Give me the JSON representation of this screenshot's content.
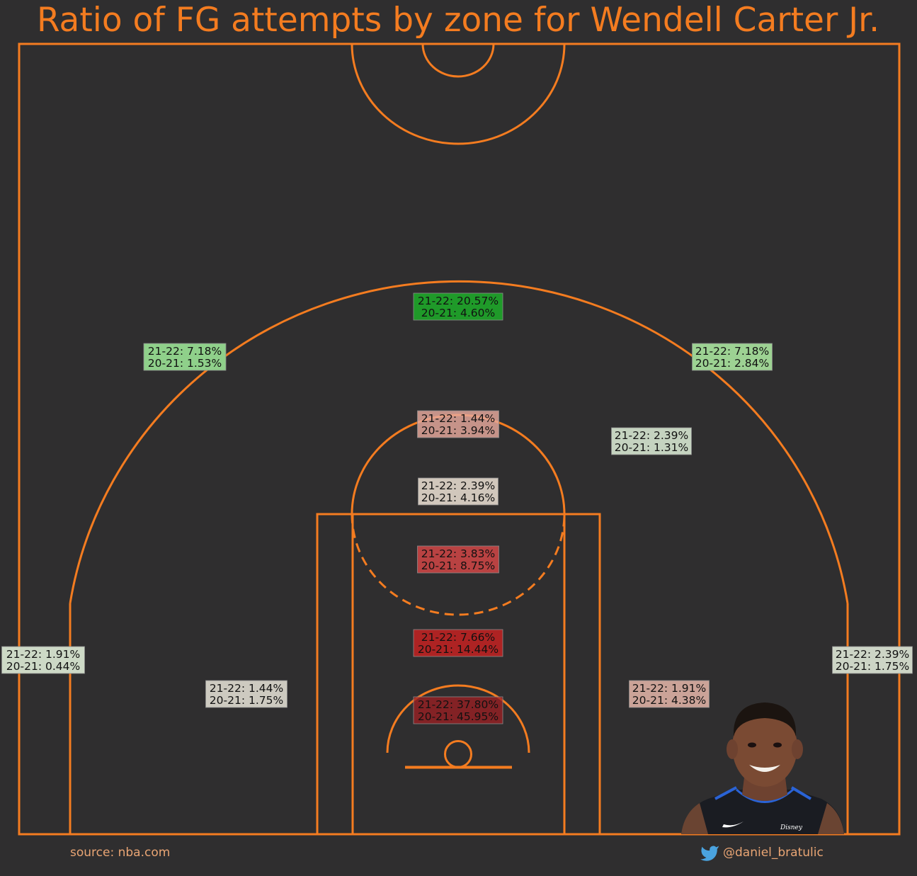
{
  "chart_data": {
    "type": "shot-zone-chart",
    "title": "Ratio of FG attempts by zone for Wendell Carter Jr.",
    "player": "Wendell Carter Jr.",
    "metric": "Ratio of FG attempts",
    "seasons": [
      "21-22",
      "20-21"
    ],
    "zones": [
      {
        "zone": "above-break-3-center",
        "values": {
          "21-22": "20.57%",
          "20-21": "4.60%"
        },
        "fill": "#1f9a29",
        "opacity": 1.0
      },
      {
        "zone": "above-break-3-left-wing",
        "values": {
          "21-22": "7.18%",
          "20-21": "1.53%"
        },
        "fill": "#8fd08a",
        "opacity": 1.0
      },
      {
        "zone": "above-break-3-right-wing",
        "values": {
          "21-22": "7.18%",
          "20-21": "2.84%"
        },
        "fill": "#9dd293",
        "opacity": 1.0
      },
      {
        "zone": "mid-range-top-of-key",
        "values": {
          "21-22": "1.44%",
          "20-21": "3.94%"
        },
        "fill": "#e8a99d",
        "opacity": 0.82
      },
      {
        "zone": "mid-range-right-elbow",
        "values": {
          "21-22": "2.39%",
          "20-21": "1.31%"
        },
        "fill": "#cddcc8",
        "opacity": 0.95
      },
      {
        "zone": "free-throw-line-area",
        "values": {
          "21-22": "2.39%",
          "20-21": "4.16%"
        },
        "fill": "#e3d8cc",
        "opacity": 0.9
      },
      {
        "zone": "paint-upper",
        "values": {
          "21-22": "3.83%",
          "20-21": "8.75%"
        },
        "fill": "#c64444",
        "opacity": 0.92
      },
      {
        "zone": "paint-lower",
        "values": {
          "21-22": "7.66%",
          "20-21": "14.44%"
        },
        "fill": "#b52323",
        "opacity": 0.95
      },
      {
        "zone": "restricted-area",
        "values": {
          "21-22": "37.80%",
          "20-21": "45.95%"
        },
        "fill": "#a01f23",
        "opacity": 0.75
      },
      {
        "zone": "left-corner-3",
        "values": {
          "21-22": "1.91%",
          "20-21": "0.44%"
        },
        "fill": "#cdd9c6",
        "opacity": 1.0
      },
      {
        "zone": "right-corner-3",
        "values": {
          "21-22": "2.39%",
          "20-21": "1.75%"
        },
        "fill": "#cdd5c6",
        "opacity": 1.0
      },
      {
        "zone": "mid-range-left-baseline",
        "values": {
          "21-22": "1.44%",
          "20-21": "1.75%"
        },
        "fill": "#d6d3c8",
        "opacity": 0.95
      },
      {
        "zone": "mid-range-right-baseline",
        "values": {
          "21-22": "1.91%",
          "20-21": "4.38%"
        },
        "fill": "#ddb0a4",
        "opacity": 0.9
      }
    ]
  },
  "colors": {
    "background": "#2f2e2f",
    "court_lines": "#f47c20",
    "title": "#f47c20",
    "footer_text": "#e9a574",
    "twitter": "#4aa3df"
  },
  "footer": {
    "source": "source: nba.com",
    "handle": "@daniel_bratulic",
    "handle_icon": "twitter-bird-icon"
  },
  "player_photo": {
    "icon": "player-headshot-image"
  }
}
